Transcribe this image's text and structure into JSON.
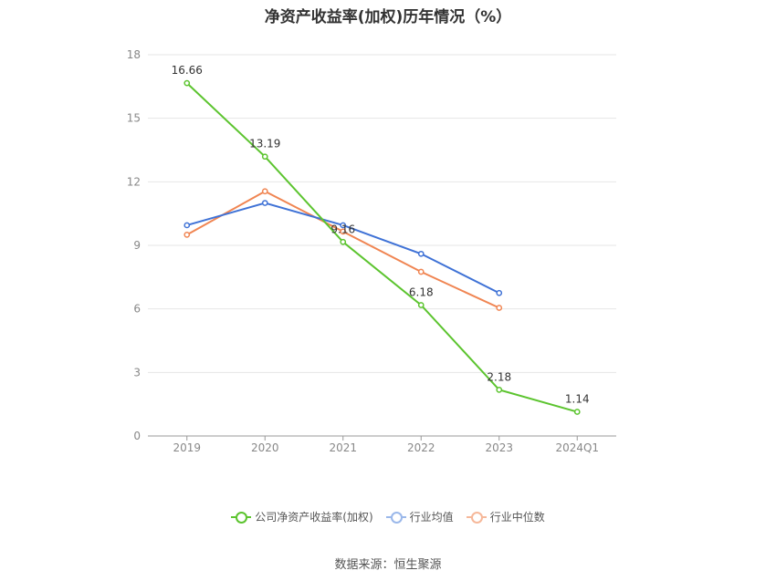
{
  "chart_data": {
    "type": "line",
    "title": "净资产收益率(加权)历年情况（%）",
    "categories": [
      "2019",
      "2020",
      "2021",
      "2022",
      "2023",
      "2024Q1"
    ],
    "y_ticks": [
      "0",
      "3",
      "6",
      "9",
      "12",
      "15",
      "18"
    ],
    "ylim": [
      0,
      18
    ],
    "grid": true,
    "legend_position": "bottom",
    "series": [
      {
        "name": "公司净资产收益率(加权)",
        "color": "#5cc42f",
        "values": [
          16.66,
          13.19,
          9.16,
          6.18,
          2.18,
          1.14
        ],
        "labels": [
          "16.66",
          "13.19",
          "9.16",
          "6.18",
          "2.18",
          "1.14"
        ]
      },
      {
        "name": "行业均值",
        "color": "#3f72d6",
        "values": [
          9.95,
          11.0,
          9.95,
          8.6,
          6.75,
          null
        ]
      },
      {
        "name": "行业中位数",
        "color": "#f08552",
        "values": [
          9.5,
          11.55,
          9.65,
          7.75,
          6.05,
          null
        ]
      }
    ]
  },
  "source": "数据来源：恒生聚源"
}
